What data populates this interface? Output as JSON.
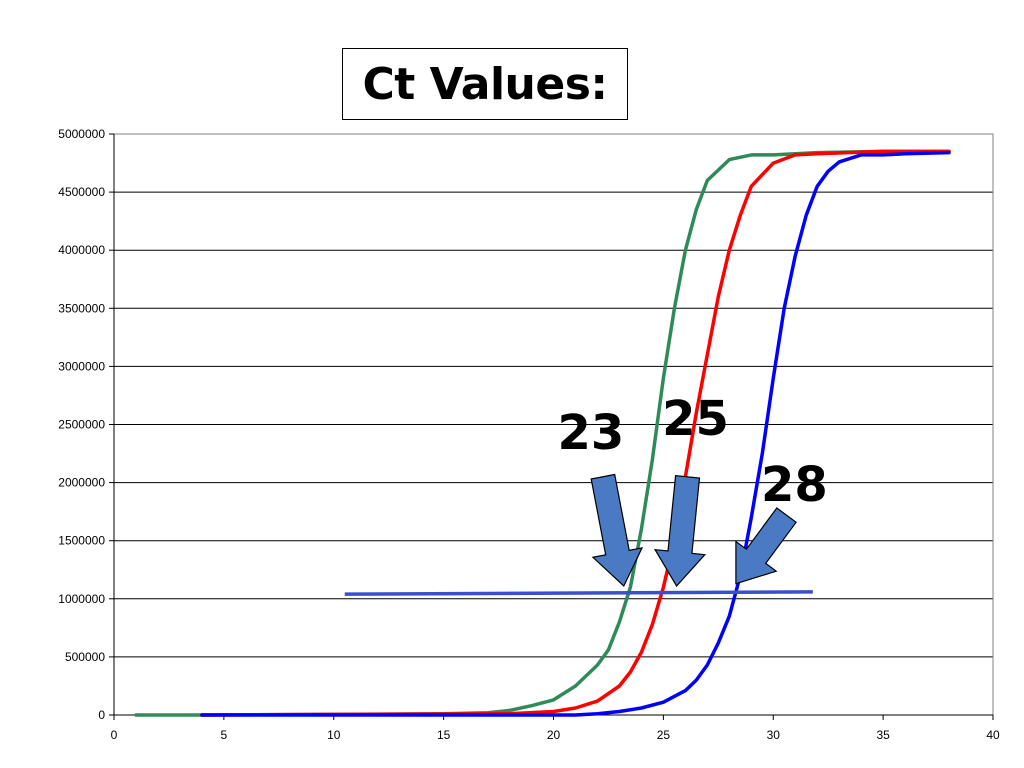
{
  "chart_data": {
    "type": "line",
    "title": "Ct Values:",
    "xlabel": "",
    "ylabel": "",
    "xlim": [
      0,
      40
    ],
    "ylim": [
      0,
      5000000
    ],
    "xticks": [
      0,
      5,
      10,
      15,
      20,
      25,
      30,
      35,
      40
    ],
    "yticks": [
      0,
      500000,
      1000000,
      1500000,
      2000000,
      2500000,
      3000000,
      3500000,
      4000000,
      4500000,
      5000000
    ],
    "grid": "horizontal",
    "series": [
      {
        "color": "#2e8b57",
        "x": [
          1,
          4,
          15,
          17,
          18,
          19,
          20,
          21,
          22,
          22.5,
          23,
          23.5,
          24,
          24.5,
          25,
          25.5,
          26,
          26.5,
          27,
          28,
          29,
          30,
          32,
          35,
          38
        ],
        "y": [
          0,
          0,
          10000,
          20000,
          40000,
          80000,
          130000,
          250000,
          430000,
          560000,
          800000,
          1100000,
          1600000,
          2200000,
          2900000,
          3500000,
          4000000,
          4350000,
          4600000,
          4780000,
          4820000,
          4820000,
          4840000,
          4850000,
          4850000
        ]
      },
      {
        "color": "#ff0000",
        "x": [
          4,
          18,
          20,
          21,
          22,
          23,
          23.5,
          24,
          24.5,
          25,
          25.5,
          26,
          26.5,
          27,
          27.5,
          28,
          28.5,
          29,
          30,
          31,
          32,
          35,
          38
        ],
        "y": [
          0,
          10000,
          30000,
          60000,
          120000,
          250000,
          370000,
          540000,
          780000,
          1100000,
          1500000,
          2050000,
          2600000,
          3100000,
          3600000,
          4000000,
          4300000,
          4550000,
          4750000,
          4820000,
          4830000,
          4850000,
          4850000
        ]
      },
      {
        "color": "#0000ff",
        "x": [
          4,
          21,
          22,
          23,
          24,
          25,
          26,
          26.5,
          27,
          27.5,
          28,
          28.5,
          29,
          29.5,
          30,
          30.5,
          31,
          31.5,
          32,
          32.5,
          33,
          34,
          35,
          36,
          38
        ],
        "y": [
          0,
          0,
          10000,
          30000,
          60000,
          110000,
          210000,
          300000,
          430000,
          620000,
          850000,
          1200000,
          1700000,
          2250000,
          2900000,
          3500000,
          3950000,
          4300000,
          4550000,
          4680000,
          4760000,
          4820000,
          4820000,
          4830000,
          4840000
        ]
      }
    ],
    "threshold": {
      "color": "#3a4fd0",
      "x": [
        10.5,
        31.8
      ],
      "y": [
        1040000,
        1060000
      ]
    },
    "annotations": [
      {
        "text": "23",
        "arrow_from": [
          22.25,
          2050000
        ],
        "arrow_to": [
          23.2,
          1110000
        ]
      },
      {
        "text": "25",
        "arrow_from": [
          26.1,
          2050000
        ],
        "arrow_to": [
          25.6,
          1110000
        ]
      },
      {
        "text": "28",
        "arrow_from": [
          30.6,
          1720000
        ],
        "arrow_to": [
          28.3,
          1130000
        ]
      }
    ],
    "arrow_color": "#4a7ac4"
  }
}
